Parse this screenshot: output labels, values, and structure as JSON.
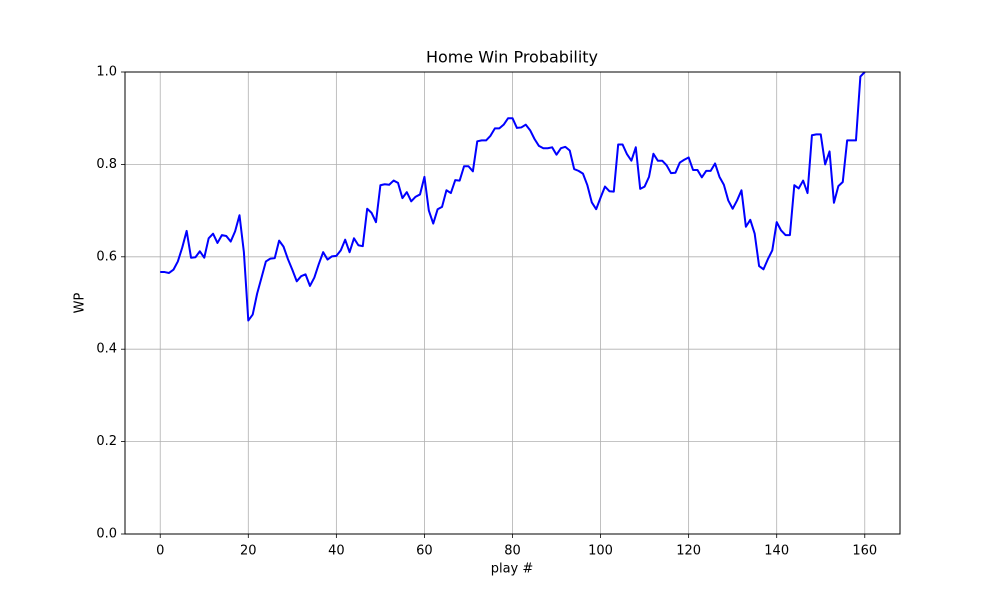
{
  "chart_data": {
    "type": "line",
    "title": "Home Win Probability",
    "x_label": "play #",
    "y_label": "WP",
    "x": [
      0,
      1,
      2,
      3,
      4,
      5,
      6,
      7,
      8,
      9,
      10,
      11,
      12,
      13,
      14,
      15,
      16,
      17,
      18,
      19,
      20,
      21,
      22,
      23,
      24,
      25,
      26,
      27,
      28,
      29,
      30,
      31,
      32,
      33,
      34,
      35,
      36,
      37,
      38,
      39,
      40,
      41,
      42,
      43,
      44,
      45,
      46,
      47,
      48,
      49,
      50,
      51,
      52,
      53,
      54,
      55,
      56,
      57,
      58,
      59,
      60,
      61,
      62,
      63,
      64,
      65,
      66,
      67,
      68,
      69,
      70,
      71,
      72,
      73,
      74,
      75,
      76,
      77,
      78,
      79,
      80,
      81,
      82,
      83,
      84,
      85,
      86,
      87,
      88,
      89,
      90,
      91,
      92,
      93,
      94,
      95,
      96,
      97,
      98,
      99,
      100,
      101,
      102,
      103,
      104,
      105,
      106,
      107,
      108,
      109,
      110,
      111,
      112,
      113,
      114,
      115,
      116,
      117,
      118,
      119,
      120,
      121,
      122,
      123,
      124,
      125,
      126,
      127,
      128,
      129,
      130,
      131,
      132,
      133,
      134,
      135,
      136,
      137,
      138,
      139,
      140,
      141,
      142,
      143,
      144,
      145,
      146,
      147,
      148,
      149,
      150,
      151,
      152,
      153,
      154,
      155,
      156,
      157,
      158,
      159,
      160
    ],
    "series": [
      {
        "name": "WP",
        "color": "#0000ff",
        "values": [
          0.567,
          0.567,
          0.565,
          0.572,
          0.59,
          0.62,
          0.656,
          0.598,
          0.599,
          0.612,
          0.598,
          0.64,
          0.65,
          0.63,
          0.647,
          0.645,
          0.633,
          0.655,
          0.69,
          0.61,
          0.462,
          0.475,
          0.52,
          0.555,
          0.59,
          0.596,
          0.597,
          0.635,
          0.622,
          0.595,
          0.572,
          0.547,
          0.558,
          0.562,
          0.537,
          0.555,
          0.584,
          0.61,
          0.594,
          0.601,
          0.602,
          0.614,
          0.637,
          0.61,
          0.64,
          0.625,
          0.623,
          0.704,
          0.695,
          0.675,
          0.755,
          0.757,
          0.756,
          0.765,
          0.76,
          0.727,
          0.74,
          0.72,
          0.73,
          0.735,
          0.773,
          0.7,
          0.672,
          0.703,
          0.708,
          0.744,
          0.738,
          0.766,
          0.765,
          0.796,
          0.796,
          0.785,
          0.85,
          0.852,
          0.852,
          0.862,
          0.878,
          0.878,
          0.886,
          0.9,
          0.9,
          0.879,
          0.88,
          0.886,
          0.874,
          0.855,
          0.84,
          0.835,
          0.835,
          0.837,
          0.821,
          0.835,
          0.838,
          0.83,
          0.79,
          0.786,
          0.78,
          0.755,
          0.718,
          0.703,
          0.728,
          0.752,
          0.742,
          0.741,
          0.843,
          0.843,
          0.822,
          0.808,
          0.837,
          0.747,
          0.752,
          0.773,
          0.823,
          0.808,
          0.808,
          0.798,
          0.781,
          0.782,
          0.804,
          0.81,
          0.815,
          0.788,
          0.788,
          0.772,
          0.786,
          0.786,
          0.802,
          0.773,
          0.756,
          0.722,
          0.704,
          0.722,
          0.744,
          0.665,
          0.68,
          0.65,
          0.58,
          0.573,
          0.595,
          0.614,
          0.675,
          0.657,
          0.647,
          0.647,
          0.755,
          0.748,
          0.765,
          0.738,
          0.863,
          0.865,
          0.865,
          0.8,
          0.828,
          0.717,
          0.753,
          0.762,
          0.852,
          0.852,
          0.852,
          0.99,
          1.0
        ]
      }
    ],
    "xlim": [
      -8,
      168
    ],
    "ylim": [
      0,
      1
    ],
    "xticks": [
      0,
      20,
      40,
      60,
      80,
      100,
      120,
      140,
      160
    ],
    "yticks": [
      {
        "value": 0,
        "label": "0.0"
      },
      {
        "value": 0.2,
        "label": "0.2"
      },
      {
        "value": 0.4,
        "label": "0.4"
      },
      {
        "value": 0.6,
        "label": "0.6"
      },
      {
        "value": 0.8,
        "label": "0.8"
      },
      {
        "value": 1,
        "label": "1.0"
      }
    ],
    "grid": true
  }
}
